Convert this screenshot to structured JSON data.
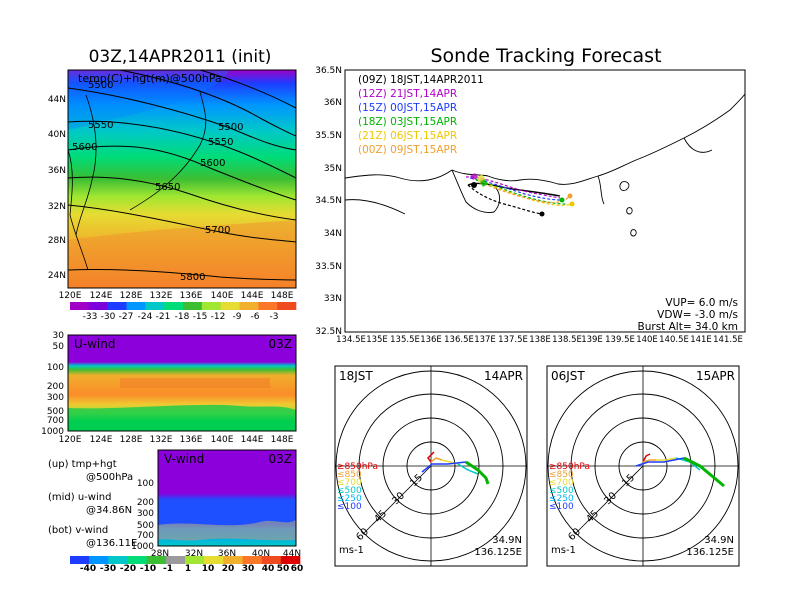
{
  "titles": {
    "left": "03Z,14APR2011 (init)",
    "right": "Sonde Tracking Forecast"
  },
  "temp_map": {
    "label": "temp(C)+hgt(m)@500hPa",
    "contour_labels": [
      "5500",
      "5550",
      "5600",
      "5650",
      "5700",
      "5800",
      "5500",
      "5550",
      "5600"
    ],
    "lat_ticks": [
      "44N",
      "40N",
      "36N",
      "32N",
      "28N",
      "24N"
    ],
    "lon_ticks": [
      "120E",
      "124E",
      "128E",
      "132E",
      "136E",
      "140E",
      "144E",
      "148E"
    ],
    "colorbar_ticks": [
      "-33",
      "-30",
      "-27",
      "-24",
      "-21",
      "-18",
      "-15",
      "-12",
      "-9",
      "-6",
      "-3"
    ],
    "colorbar_colors": [
      "#a000c8",
      "#7d00dc",
      "#1e3cff",
      "#0096ff",
      "#00c8c8",
      "#00dc78",
      "#3cbe32",
      "#a0e632",
      "#e6dc32",
      "#f0af2d",
      "#fa7828",
      "#f04b1e"
    ]
  },
  "uwind": {
    "title": "U-wind",
    "time": "03Z",
    "p_ticks": [
      "30",
      "50",
      "100",
      "200",
      "300",
      "500",
      "700",
      "1000"
    ],
    "lon_ticks": [
      "120E",
      "124E",
      "128E",
      "132E",
      "136E",
      "140E",
      "144E",
      "148E"
    ]
  },
  "vwind": {
    "title": "V-wind",
    "time": "03Z",
    "p_ticks": [
      "100",
      "200",
      "300",
      "500",
      "700",
      "1000"
    ],
    "lat_ticks": [
      "28N",
      "32N",
      "36N",
      "40N",
      "44N"
    ]
  },
  "legend_notes": [
    {
      "line1": "(up) tmp+hgt",
      "line2": "@500hPa"
    },
    {
      "line1": "(mid) u-wind",
      "line2": "@34.86N"
    },
    {
      "line1": "(bot) v-wind",
      "line2": "@136.11E"
    }
  ],
  "wind_colorbar": {
    "ticks": [
      "-40",
      "-30",
      "-20",
      "-10",
      "-1",
      "1",
      "10",
      "20",
      "30",
      "40",
      "50",
      "60"
    ],
    "colors": [
      "#1e3cff",
      "#0096ff",
      "#00c8c8",
      "#00dc78",
      "#3cbe32",
      "#9b9b9b",
      "#a0e632",
      "#e6dc32",
      "#f0af2d",
      "#fa7828",
      "#f04b1e",
      "#dc0000"
    ]
  },
  "track_map": {
    "lat_ticks": [
      "36.5N",
      "36N",
      "35.5N",
      "35N",
      "34.5N",
      "34N",
      "33.5N",
      "33N",
      "32.5N"
    ],
    "lon_ticks": [
      "134.5E",
      "135E",
      "135.5E",
      "136E",
      "136.5E",
      "137E",
      "137.5E",
      "138E",
      "138.5E",
      "139E",
      "139.5E",
      "140E",
      "140.5E",
      "141E",
      "141.5E"
    ],
    "launches": [
      {
        "label": "(09Z)  18JST,14APR2011",
        "color": "#000000"
      },
      {
        "label": "(12Z)  21JST,14APR",
        "color": "#b400c8"
      },
      {
        "label": "(15Z)  00JST,15APR",
        "color": "#1e3cff"
      },
      {
        "label": "(18Z)  03JST,15APR",
        "color": "#00b400"
      },
      {
        "label": "(21Z)  06JST,15APR",
        "color": "#f0c800"
      },
      {
        "label": "(00Z)  09JST,15APR",
        "color": "#f0a030"
      }
    ],
    "params": [
      "VUP=  6.0  m/s",
      "VDW= -3.0  m/s",
      "Burst Alt=  34.0  km"
    ]
  },
  "hodo_left": {
    "time": "18JST",
    "date": "14APR",
    "ring_labels": [
      "15",
      "30",
      "45",
      "60"
    ],
    "levels": [
      "≥850hPa",
      "≤850",
      "≤700",
      "≤500",
      "≤250",
      "≤100"
    ],
    "level_colors": [
      "#dc0000",
      "#f0a030",
      "#e6dc32",
      "#00c8c8",
      "#00b4ff",
      "#1e3cff"
    ],
    "units": "ms-1",
    "loc_lat": "34.9N",
    "loc_lon": "136.125E"
  },
  "hodo_right": {
    "time": "06JST",
    "date": "15APR",
    "ring_labels": [
      "15",
      "30",
      "45",
      "60"
    ],
    "levels": [
      "≥850hPa",
      "≤850",
      "≤700",
      "≤500",
      "≤250",
      "≤100"
    ],
    "level_colors": [
      "#dc0000",
      "#f0a030",
      "#e6dc32",
      "#00c8c8",
      "#00b4ff",
      "#1e3cff"
    ],
    "units": "ms-1",
    "loc_lat": "34.9N",
    "loc_lon": "136.125E"
  }
}
